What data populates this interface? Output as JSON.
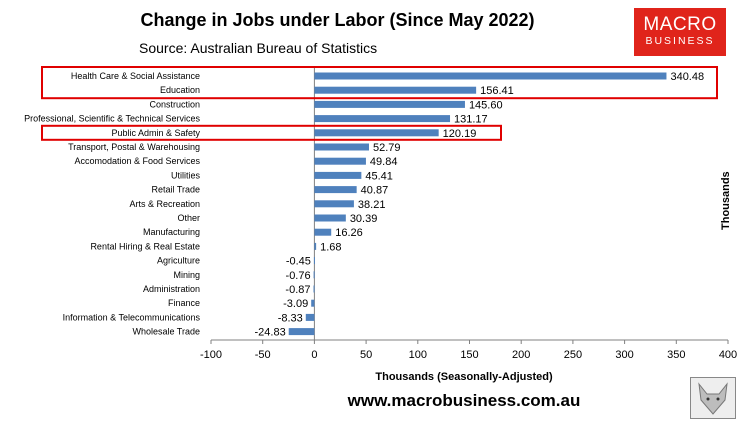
{
  "header": {
    "title": "Change in Jobs under Labor (Since May 2022)",
    "source": "Source: Australian Bureau of Statistics"
  },
  "logo": {
    "line1": "MACRO",
    "line2": "BUSINESS",
    "color": "#e0241b"
  },
  "footer": {
    "url": "www.macrobusiness.com.au"
  },
  "chart_data": {
    "type": "bar",
    "orientation": "horizontal",
    "title": "Change in Jobs under Labor (Since May 2022)",
    "xlabel": "Thousands (Seasonally-Adjusted)",
    "ylabel": "Thousands",
    "xlim": [
      -100,
      400
    ],
    "xticks": [
      "-100",
      "-50",
      "0",
      "50",
      "100",
      "150",
      "200",
      "250",
      "300",
      "350",
      "400"
    ],
    "bar_color": "#4f81bd",
    "highlight_color": "#e00000",
    "highlighted": [
      "Health Care & Social Assistance",
      "Education",
      "Public Admin & Safety"
    ],
    "categories": [
      "Health Care & Social Assistance",
      "Education",
      "Construction",
      "Professional, Scientific & Technical Services",
      "Public Admin & Safety",
      "Transport, Postal & Warehousing",
      "Accomodation & Food Services",
      "Utilities",
      "Retail Trade",
      "Arts & Recreation",
      "Other",
      "Manufacturing",
      "Rental Hiring & Real Estate",
      "Agriculture",
      "Mining",
      "Administration",
      "Finance",
      "Information & Telecommunications",
      "Wholesale Trade"
    ],
    "values": [
      340.48,
      156.41,
      145.6,
      131.17,
      120.19,
      52.79,
      49.84,
      45.41,
      40.87,
      38.21,
      30.39,
      16.26,
      1.68,
      -0.45,
      -0.76,
      -0.87,
      -3.09,
      -8.33,
      -24.83
    ],
    "value_labels": [
      "340.48",
      "156.41",
      "145.60",
      "131.17",
      "120.19",
      "52.79",
      "49.84",
      "45.41",
      "40.87",
      "38.21",
      "30.39",
      "16.26",
      "1.68",
      "-0.45",
      "-0.76",
      "-0.87",
      "-3.09",
      "-8.33",
      "-24.83"
    ]
  }
}
